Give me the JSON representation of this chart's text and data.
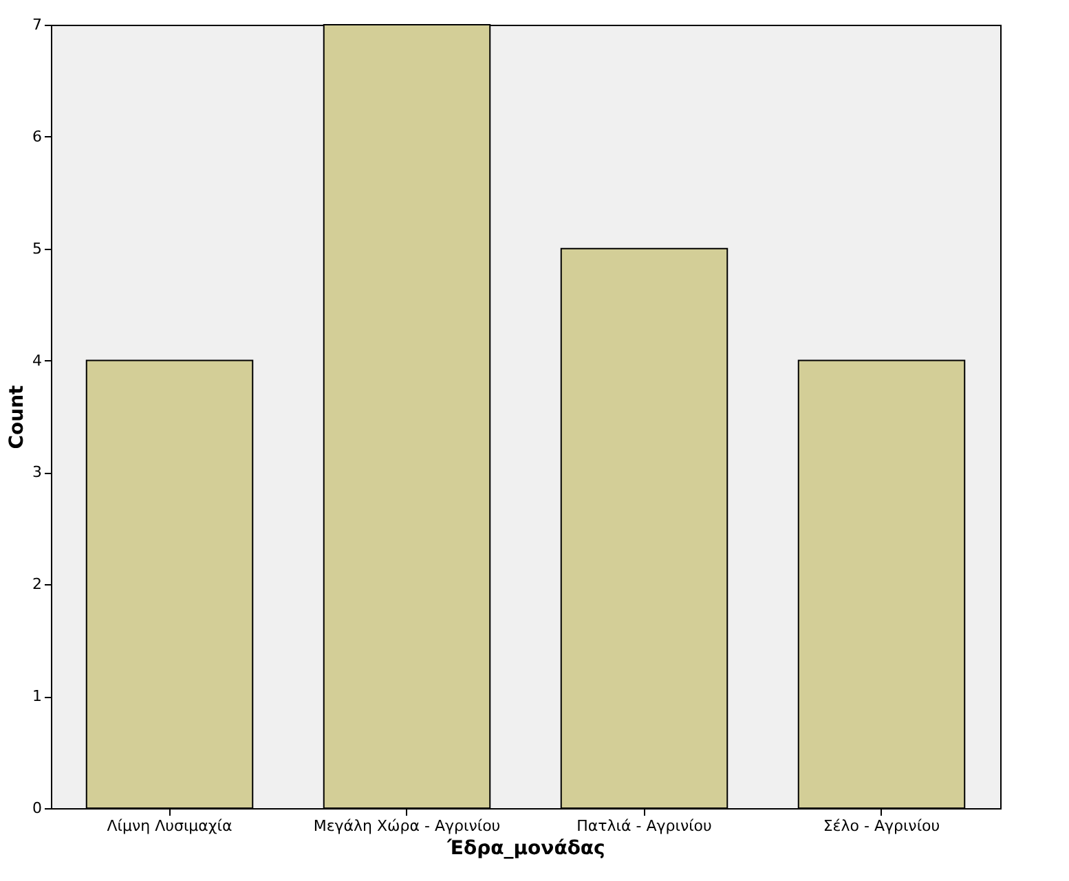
{
  "chart_data": {
    "type": "bar",
    "xlabel": "Έδρα_μονάδας",
    "ylabel": "Count",
    "categories": [
      "Λίμνη Λυσιμαχία",
      "Μεγάλη Χώρα - Αγρινίου",
      "Πατλιά - Αγρινίου",
      "Σέλο - Αγρινίου"
    ],
    "values": [
      4,
      7,
      5,
      4
    ],
    "color": "#d3ce97",
    "ylim": [
      0,
      7
    ],
    "yticks": [
      0,
      1,
      2,
      3,
      4,
      5,
      6,
      7
    ],
    "grid": false
  }
}
